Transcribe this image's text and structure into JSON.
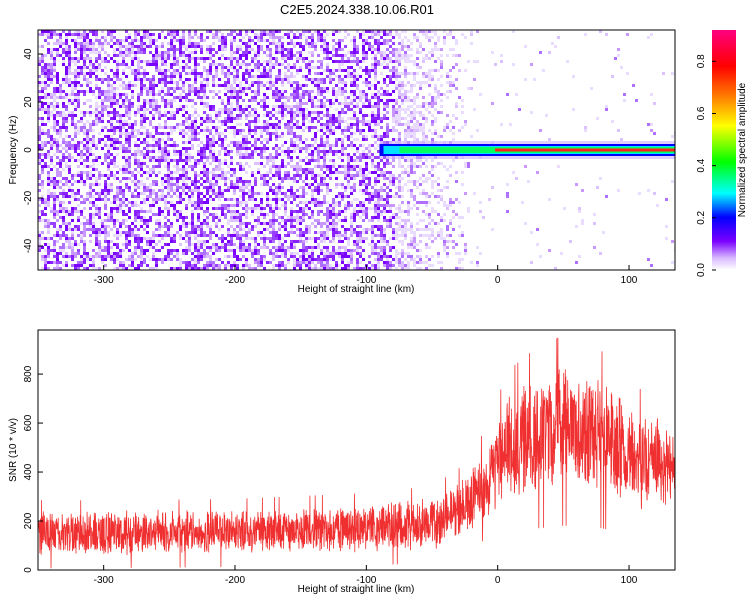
{
  "title": "C2E5.2024.338.10.06.R01",
  "chart_data": [
    {
      "type": "heatmap",
      "xlabel": "Height of straight line (km)",
      "ylabel": "Frequency (Hz)",
      "xlim": [
        -350,
        135
      ],
      "ylim": [
        -50,
        50
      ],
      "x_ticks": [
        -300,
        -200,
        -100,
        0,
        100
      ],
      "y_ticks": [
        -40,
        -20,
        0,
        20,
        40
      ],
      "colorbar": {
        "label": "Normalized spectral amplitude",
        "range": [
          0,
          0.92
        ],
        "ticks": [
          0.0,
          0.2,
          0.4,
          0.6,
          0.8
        ],
        "colormap": [
          "#ffffff",
          "#d9b8ff",
          "#7a00ff",
          "#0000ff",
          "#00ffff",
          "#00ff00",
          "#ffff00",
          "#ff8000",
          "#ff0000",
          "#ff0080"
        ]
      },
      "features": {
        "noise_region_x": [
          -350,
          -80
        ],
        "carrier_start_x": -90,
        "carrier_frequency_hz": 0
      }
    },
    {
      "type": "line",
      "xlabel": "Height of straight line (km)",
      "ylabel": "SNR (10 * v/v)",
      "xlim": [
        -350,
        135
      ],
      "ylim": [
        0,
        980
      ],
      "x_ticks": [
        -300,
        -200,
        -100,
        0,
        100
      ],
      "y_ticks": [
        0,
        200,
        400,
        600,
        800
      ],
      "line_color": "#f03030",
      "envelope": {
        "x": [
          -350,
          -300,
          -200,
          -100,
          -50,
          -30,
          -10,
          0,
          10,
          30,
          50,
          70,
          90,
          100,
          110,
          135
        ],
        "mean": [
          150,
          150,
          155,
          170,
          190,
          240,
          350,
          440,
          500,
          550,
          580,
          560,
          520,
          480,
          440,
          430
        ],
        "spread": [
          75,
          75,
          75,
          80,
          85,
          95,
          120,
          150,
          180,
          200,
          210,
          200,
          190,
          180,
          160,
          150
        ]
      }
    }
  ]
}
